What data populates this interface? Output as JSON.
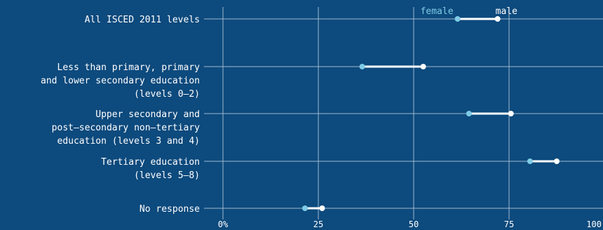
{
  "colors": {
    "background": "#0d4a7d",
    "grid": "#9fb8cf",
    "female": "#7ecbe6",
    "male": "#ffffff",
    "segment": "#ffffff",
    "text": "#ffffff"
  },
  "chart_data": {
    "type": "dumbbell",
    "categories": [
      [
        "All ISCED 2011 levels"
      ],
      [
        "Less than primary, primary",
        "and lower secondary education",
        "(levels 0–2)"
      ],
      [
        "Upper secondary and",
        "post–secondary non–tertiary",
        "education (levels 3 and 4)"
      ],
      [
        "Tertiary education",
        "(levels 5–8)"
      ],
      [
        "No response"
      ]
    ],
    "series": [
      {
        "name": "female",
        "values": [
          61.5,
          36.5,
          64.5,
          80.5,
          21.5
        ]
      },
      {
        "name": "male",
        "values": [
          72,
          52.5,
          75.5,
          87.5,
          26
        ]
      }
    ],
    "xlim": [
      0,
      100
    ],
    "xticks": [
      0,
      25,
      50,
      75,
      100
    ],
    "xtick_labels": [
      "0%",
      "25",
      "50",
      "75",
      "100"
    ],
    "grid": true,
    "legend_placement": "top, above the first row next to its markers"
  }
}
